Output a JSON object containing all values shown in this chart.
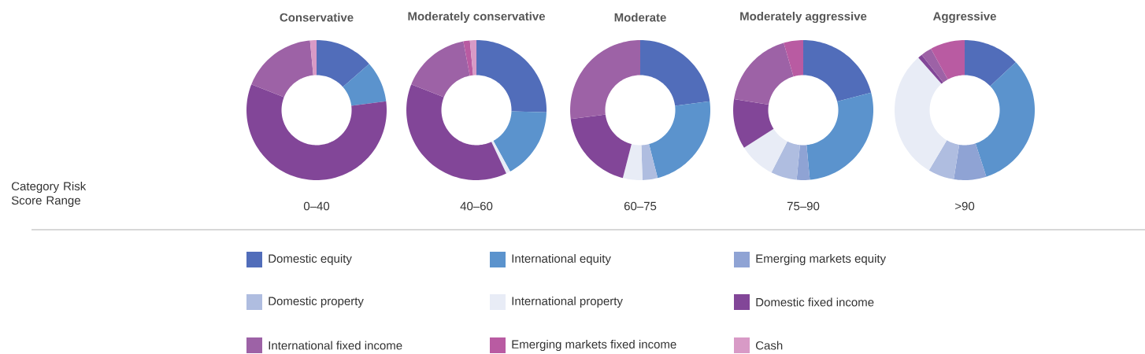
{
  "chart_data": [
    {
      "type": "donut",
      "title": "Conservative",
      "legend": "bottom",
      "categories": [
        "Domestic equity",
        "International equity",
        "Emerging markets equity",
        "Domestic property",
        "International property",
        "Domestic fixed income",
        "International fixed income",
        "Emerging markets fixed income",
        "Cash"
      ],
      "values": [
        13.5,
        9.5,
        0,
        0,
        0,
        58,
        17.5,
        0,
        1.5
      ],
      "colors": [
        "#516dba",
        "#5b93cd",
        "#8fa3d4",
        "#afbde0",
        "#e8ecf6",
        "#824698",
        "#9d62a6",
        "#b95ba2",
        "#d89ac6"
      ],
      "annotations": [
        "0–40",
        "Category Risk Score Range"
      ]
    },
    {
      "type": "donut",
      "title": "Moderately conservative",
      "categories": [
        null,
        null,
        null,
        null,
        null,
        null,
        null,
        null,
        null
      ],
      "values": [
        25.5,
        16.5,
        0,
        0,
        1,
        38,
        16,
        1.5,
        1.5
      ],
      "colors": [
        "#516dba",
        "#5b93cd",
        "#8fa3d4",
        "#afbde0",
        "#e8ecf6",
        "#824698",
        "#9d62a6",
        "#b95ba2",
        "#d89ac6"
      ],
      "annotations": [
        "40–60"
      ]
    },
    {
      "type": "donut",
      "title": "Moderate",
      "categories": [
        null,
        null,
        null,
        null,
        null,
        null,
        null,
        null,
        null
      ],
      "values": [
        23,
        23,
        0,
        3.5,
        4.5,
        19,
        27,
        0,
        0
      ],
      "colors": [
        "#516dba",
        "#5b93cd",
        "#8fa3d4",
        "#afbde0",
        "#e8ecf6",
        "#824698",
        "#9d62a6",
        "#b95ba2",
        "#d89ac6"
      ],
      "annotations": [
        "60–75"
      ]
    },
    {
      "type": "donut",
      "title": "Moderately aggressive",
      "categories": [
        null,
        null,
        null,
        null,
        null,
        null,
        null,
        null,
        null
      ],
      "values": [
        21,
        27.5,
        3,
        6,
        8.5,
        11.5,
        18,
        4.5,
        0
      ],
      "colors": [
        "#516dba",
        "#5b93cd",
        "#8fa3d4",
        "#afbde0",
        "#e8ecf6",
        "#824698",
        "#9d62a6",
        "#b95ba2",
        "#d89ac6"
      ],
      "annotations": [
        "75–90"
      ]
    },
    {
      "type": "donut",
      "title": "Aggressive",
      "categories": [
        null,
        null,
        null,
        null,
        null,
        null,
        null,
        null,
        null
      ],
      "values": [
        13,
        32,
        7.5,
        6,
        30,
        1,
        2.5,
        8,
        0
      ],
      "colors": [
        "#516dba",
        "#5b93cd",
        "#8fa3d4",
        "#afbde0",
        "#e8ecf6",
        "#824698",
        "#9d62a6",
        "#b95ba2",
        "#d89ac6"
      ],
      "annotations": [
        ">90"
      ]
    }
  ]
}
